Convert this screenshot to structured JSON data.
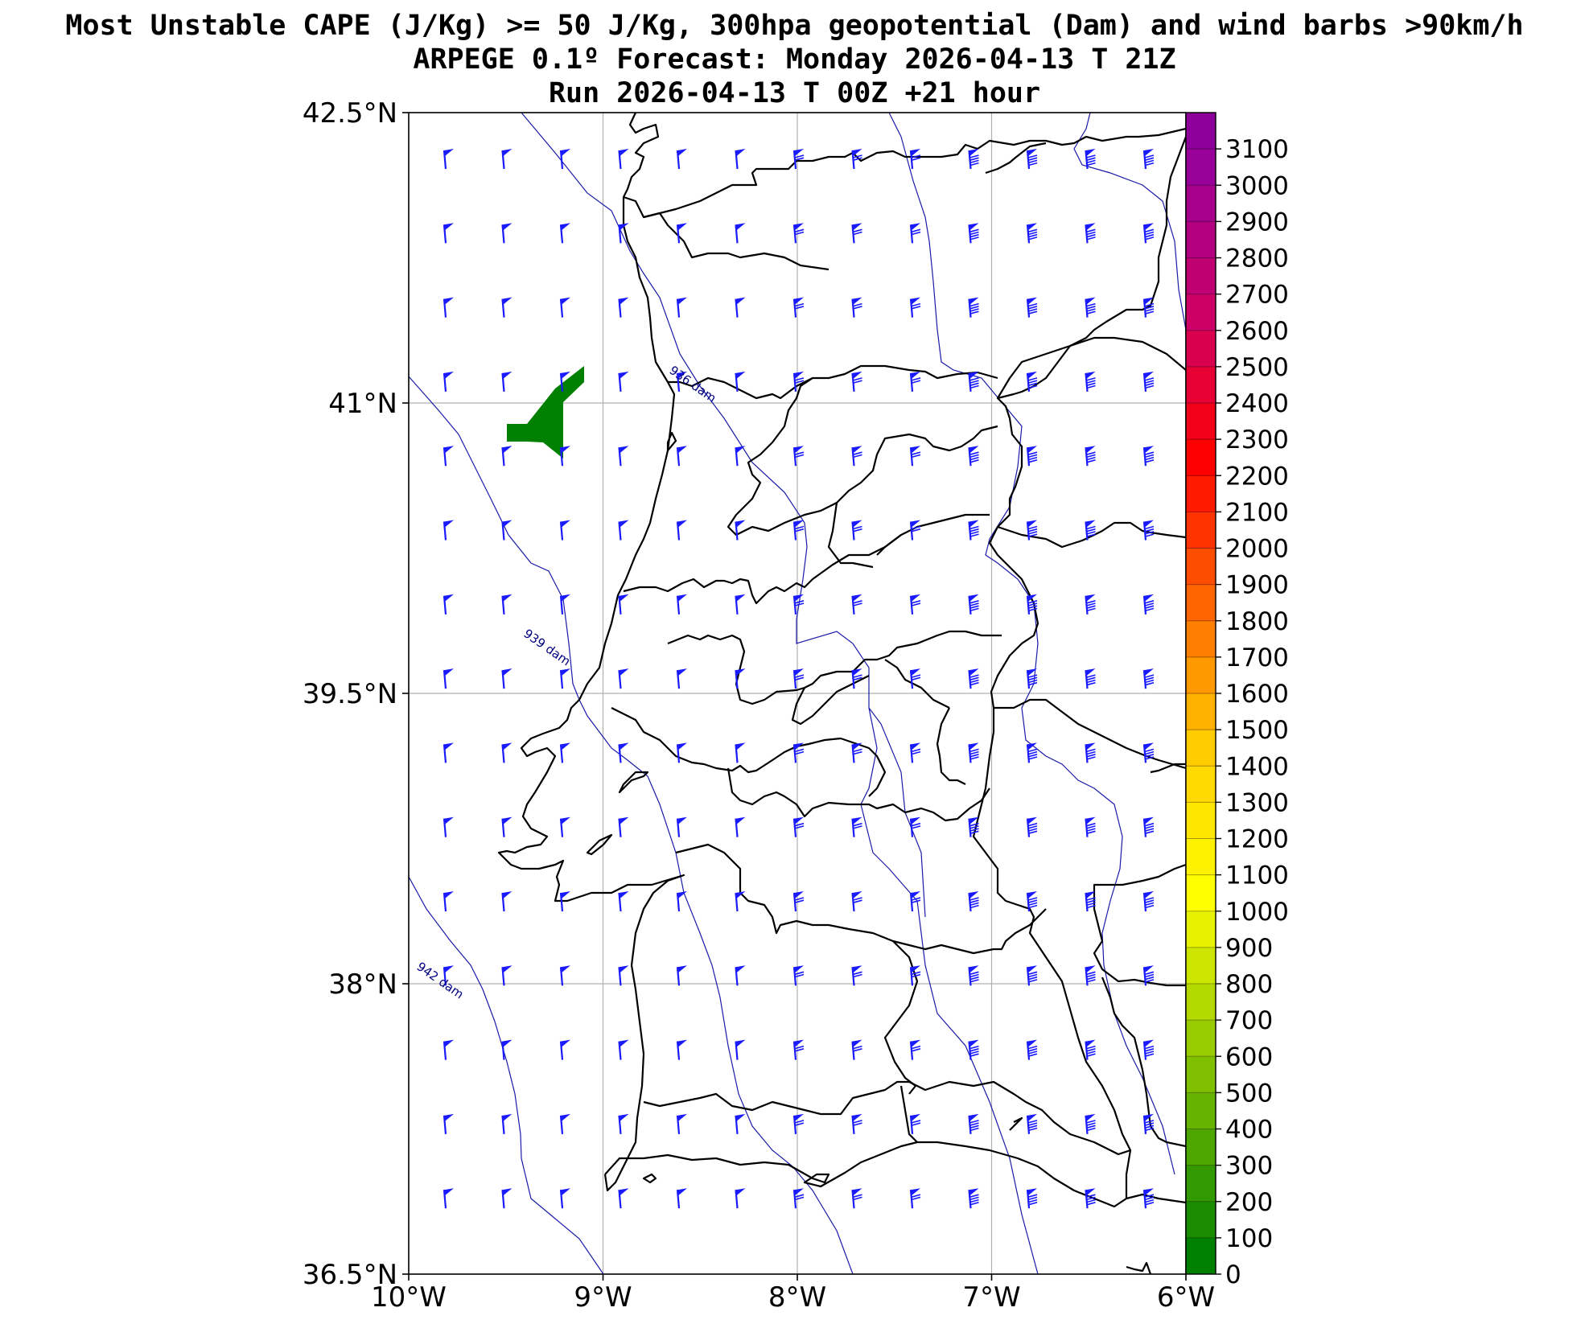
{
  "title_lines": [
    "Most Unstable CAPE (J/Kg) >= 50 J/Kg, 300hpa geopotential (Dam) and wind barbs >90km/h",
    "ARPEGE 0.1º Forecast: Monday 2026-04-13 T 21Z",
    "Run 2026-04-13 T 00Z +21 hour"
  ],
  "map": {
    "lon_range": [
      -10,
      -6
    ],
    "lat_range": [
      36.5,
      42.5
    ],
    "x_ticks": [
      {
        "value": -10,
        "label": "10°W"
      },
      {
        "value": -9,
        "label": "9°W"
      },
      {
        "value": -8,
        "label": "8°W"
      },
      {
        "value": -7,
        "label": "7°W"
      },
      {
        "value": -6,
        "label": "6°W"
      }
    ],
    "y_ticks": [
      {
        "value": 42.5,
        "label": "42.5°N"
      },
      {
        "value": 41,
        "label": "41°N"
      },
      {
        "value": 39.5,
        "label": "39.5°N"
      },
      {
        "value": 38,
        "label": "38°N"
      },
      {
        "value": 36.5,
        "label": "36.5°N"
      }
    ],
    "grid": true,
    "contours": [
      {
        "label": "936 dam",
        "label_pos": [
          -8.55,
          41.08
        ]
      },
      {
        "label": "939 dam",
        "label_pos": [
          -9.3,
          39.72
        ]
      },
      {
        "label": "942 dam",
        "label_pos": [
          -9.85,
          38.0
        ]
      }
    ],
    "wind_barb_color": "#1a1aff",
    "cape_fill_color": "#008000"
  },
  "colorbar": {
    "min": 0,
    "max": 3200,
    "labels": [
      "0",
      "100",
      "200",
      "300",
      "400",
      "500",
      "600",
      "700",
      "800",
      "900",
      "1000",
      "1100",
      "1200",
      "1300",
      "1400",
      "1500",
      "1600",
      "1700",
      "1800",
      "1900",
      "2000",
      "2100",
      "2200",
      "2300",
      "2400",
      "2500",
      "2600",
      "2700",
      "2800",
      "2900",
      "3000",
      "3100"
    ],
    "colors": [
      "#008000",
      "#1a8c00",
      "#339900",
      "#4da600",
      "#66b300",
      "#80bf00",
      "#99cc00",
      "#b3d900",
      "#cce600",
      "#e6f200",
      "#ffff00",
      "#fff200",
      "#ffe600",
      "#ffd900",
      "#ffcc00",
      "#ffb300",
      "#ff9900",
      "#ff8000",
      "#ff6600",
      "#ff4d00",
      "#ff3300",
      "#ff1a00",
      "#ff0000",
      "#f2001a",
      "#e60033",
      "#d9004d",
      "#cc0066",
      "#bf0073",
      "#b30080",
      "#a6008c",
      "#990099",
      "#8c0099"
    ]
  }
}
